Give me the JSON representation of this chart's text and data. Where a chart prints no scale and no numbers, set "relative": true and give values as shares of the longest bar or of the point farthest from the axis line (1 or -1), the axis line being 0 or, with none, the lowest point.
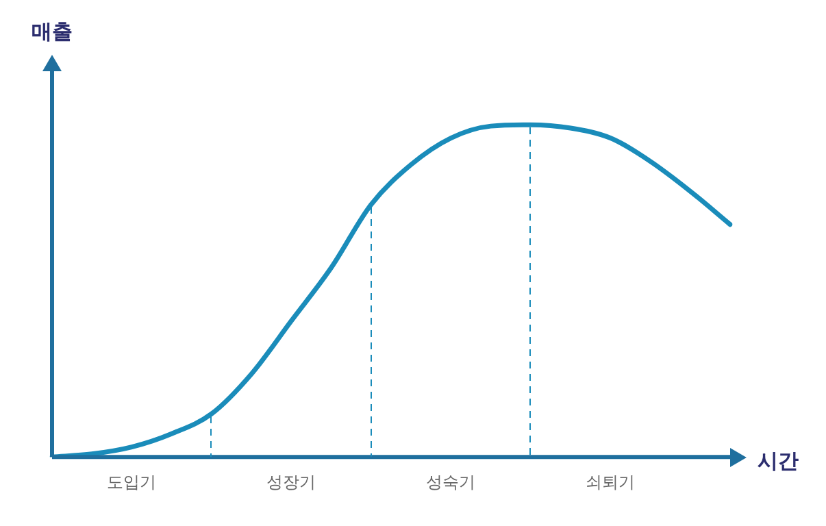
{
  "chart_data": {
    "type": "line",
    "relative": true,
    "xlabel": "시간",
    "ylabel": "매출",
    "color": "#1a8cba",
    "legend": false,
    "marker": "none",
    "line_style": "solid",
    "categories": [
      null,
      null,
      "도입기",
      null,
      null,
      null,
      "성장기",
      null,
      null,
      null,
      "성숙기",
      null,
      null,
      null,
      "쇠퇴기",
      null,
      null,
      null
    ],
    "values": [
      0,
      0.009,
      0.03,
      0.07,
      0.13,
      0.25,
      0.41,
      0.57,
      0.76,
      0.88,
      0.96,
      0.996,
      1,
      0.99,
      0.96,
      0.89,
      0.8,
      0.7
    ]
  }
}
